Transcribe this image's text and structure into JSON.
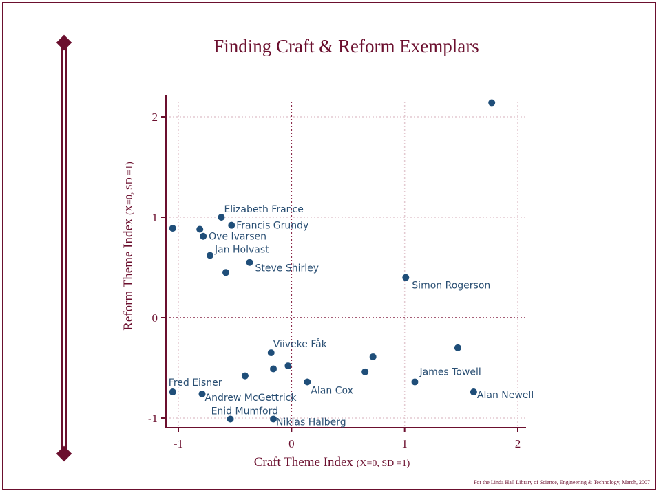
{
  "page": {
    "footer": "For the Linda Hall Library of Science, Engineering & Technology, March, 2007"
  },
  "colors": {
    "border": "#6b0f2e",
    "points": "#1f4e79",
    "labels": "#2a4f73",
    "grid": "#e3c9d0",
    "zero_lines": "#8a2a4a"
  },
  "chart_data": {
    "type": "scatter",
    "title": "Finding Craft & Reform Exemplars",
    "xlabel": {
      "main": "Craft Theme Index ",
      "sub": "(X=0, SD =1)"
    },
    "ylabel": {
      "main": "Reform Theme Index ",
      "sub": "(X=0, SD =1)"
    },
    "xlim": [
      -1.1,
      2.05
    ],
    "ylim": [
      -1.12,
      2.22
    ],
    "xticks": [
      -1,
      0,
      1,
      2
    ],
    "yticks": [
      -1,
      0,
      1,
      2
    ],
    "xtick_labels": [
      "-1",
      "0",
      "1",
      "2"
    ],
    "ytick_labels": [
      "-1",
      "0",
      "1",
      "2"
    ],
    "grid": true,
    "points": [
      {
        "x": -1.05,
        "y": 0.89,
        "label": ""
      },
      {
        "x": -0.81,
        "y": 0.88,
        "label": ""
      },
      {
        "x": -0.78,
        "y": 0.81,
        "label": "Ove Ivarsen"
      },
      {
        "x": -0.62,
        "y": 1.0,
        "label": "Elizabeth France"
      },
      {
        "x": -0.53,
        "y": 0.92,
        "label": "Francis Grundy"
      },
      {
        "x": -0.72,
        "y": 0.62,
        "label": "Jan Holvast"
      },
      {
        "x": -0.37,
        "y": 0.55,
        "label": "Steve Shirley"
      },
      {
        "x": -0.58,
        "y": 0.45,
        "label": ""
      },
      {
        "x": 1.01,
        "y": 0.4,
        "label": "Simon Rogerson"
      },
      {
        "x": 1.77,
        "y": 2.14,
        "label": ""
      },
      {
        "x": -0.18,
        "y": -0.35,
        "label": "Viiveke Fåk"
      },
      {
        "x": -0.03,
        "y": -0.48,
        "label": ""
      },
      {
        "x": -0.16,
        "y": -0.51,
        "label": ""
      },
      {
        "x": -0.41,
        "y": -0.58,
        "label": ""
      },
      {
        "x": 0.14,
        "y": -0.64,
        "label": "Alan Cox"
      },
      {
        "x": 0.65,
        "y": -0.54,
        "label": ""
      },
      {
        "x": 0.72,
        "y": -0.39,
        "label": ""
      },
      {
        "x": 1.47,
        "y": -0.3,
        "label": ""
      },
      {
        "x": 1.09,
        "y": -0.64,
        "label": "James Towell"
      },
      {
        "x": 1.61,
        "y": -0.74,
        "label": "Alan Newell"
      },
      {
        "x": -1.05,
        "y": -0.74,
        "label": "Fred Eisner"
      },
      {
        "x": -0.79,
        "y": -0.76,
        "label": "Andrew McGettrick"
      },
      {
        "x": -0.54,
        "y": -1.01,
        "label": "Enid Mumford"
      },
      {
        "x": -0.16,
        "y": -1.01,
        "label": "Niklas Halberg"
      }
    ]
  }
}
